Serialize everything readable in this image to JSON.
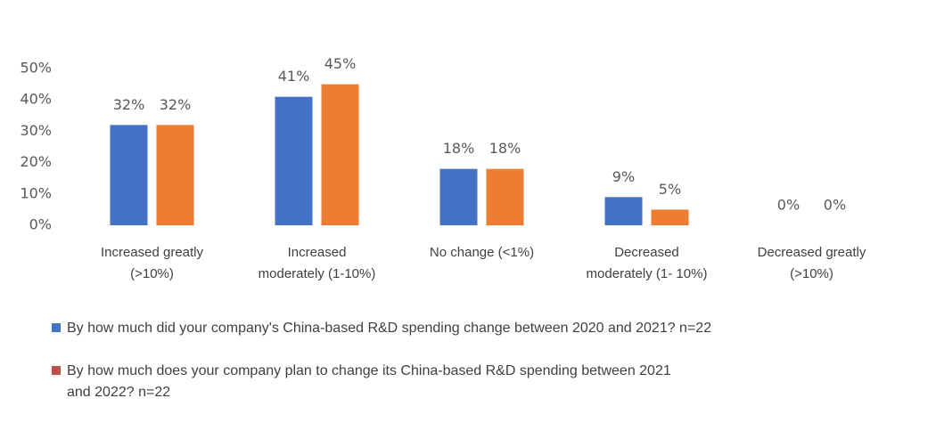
{
  "chart_data": {
    "type": "bar",
    "categories": [
      "Increased greatly\n(>10%)",
      "Increased\nmoderately (1-10%)",
      "No change (<1%)",
      "Decreased\nmoderately (1- 10%)",
      "Decreased greatly\n(>10%)"
    ],
    "series": [
      {
        "name": "By how much did your company's China-based R&D spending change between 2020 and 2021? n=22",
        "color": "#4472c4",
        "legend_color": "#4472c4",
        "values": [
          32,
          41,
          18,
          9,
          0
        ],
        "value_labels": [
          "32%",
          "41%",
          "18%",
          "9%",
          "0%"
        ]
      },
      {
        "name": "By how much does your company plan to change its China-based R&D spending between 2021\nand 2022?  n=22",
        "color": "#ed7d31",
        "legend_color": "#c0504d",
        "values": [
          32,
          45,
          18,
          5,
          0
        ],
        "value_labels": [
          "32%",
          "45%",
          "18%",
          "5%",
          "0%"
        ]
      }
    ],
    "ylim": [
      0,
      50
    ],
    "yticks": [
      {
        "value": 0,
        "label": "0%"
      },
      {
        "value": 10,
        "label": "10%"
      },
      {
        "value": 20,
        "label": "20%"
      },
      {
        "value": 30,
        "label": "30%"
      },
      {
        "value": 40,
        "label": "40%"
      },
      {
        "value": 50,
        "label": "50%"
      }
    ],
    "grid": false
  }
}
